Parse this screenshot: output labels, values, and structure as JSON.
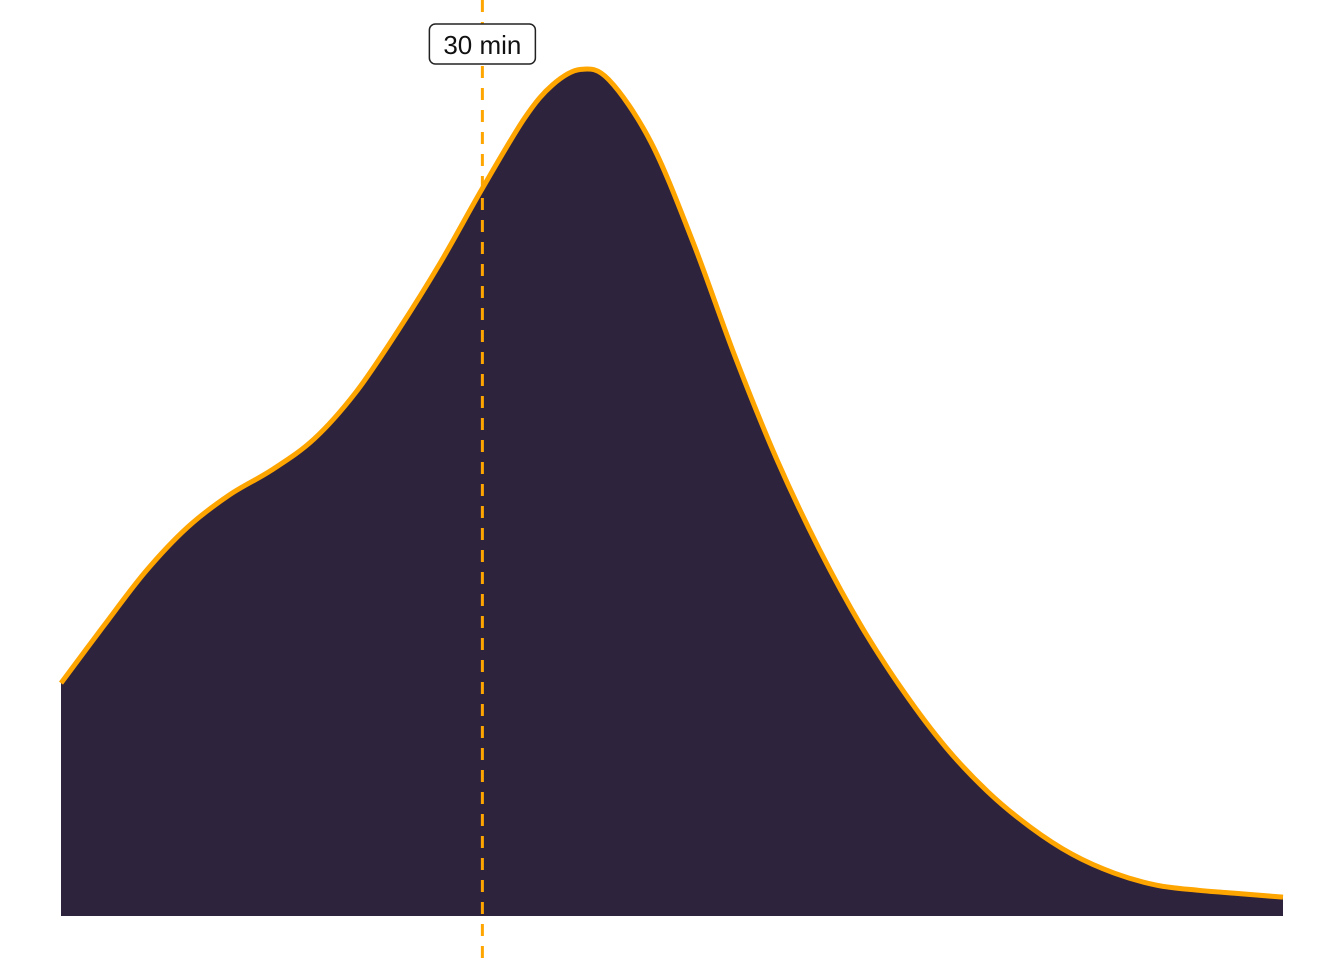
{
  "chart_data": {
    "type": "area",
    "title": "",
    "xlabel": "",
    "ylabel": "",
    "xlim": [
      0,
      87
    ],
    "ylim": [
      0,
      1.0
    ],
    "grid": false,
    "series": [
      {
        "x": [
          0,
          3,
          6,
          9,
          12,
          15,
          18,
          21,
          24,
          27,
          30,
          33,
          35,
          37,
          39,
          42,
          45,
          48,
          51,
          54,
          57,
          60,
          63,
          66,
          69,
          72,
          75,
          78,
          81,
          84,
          87
        ],
        "y": [
          0.272,
          0.338,
          0.402,
          0.454,
          0.492,
          0.521,
          0.557,
          0.612,
          0.684,
          0.763,
          0.85,
          0.932,
          0.971,
          0.989,
          0.977,
          0.904,
          0.787,
          0.653,
          0.532,
          0.428,
          0.338,
          0.262,
          0.197,
          0.145,
          0.104,
          0.072,
          0.05,
          0.036,
          0.03,
          0.026,
          0.022
        ],
        "fill_color": "#2d233d",
        "line_color": "#ffa500"
      }
    ],
    "markers": [
      {
        "x": 30,
        "label": "30 min",
        "color": "#ffa500",
        "style": "dashed"
      }
    ]
  }
}
